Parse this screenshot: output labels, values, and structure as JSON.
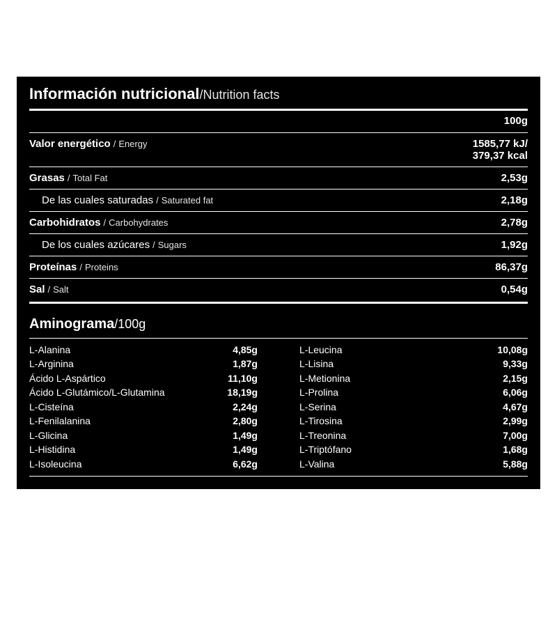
{
  "colors": {
    "bg": "#000000",
    "fg": "#ffffff"
  },
  "title": {
    "main": "Información nutricional",
    "sep": "/",
    "sub": "Nutrition facts"
  },
  "serving": "100g",
  "nutrition": [
    {
      "id": "energy",
      "bold": "Valor energético",
      "sep": " / ",
      "ital": "Energy",
      "value": "1585,77 kJ/\n379,37 kcal",
      "indent": false,
      "border": true
    },
    {
      "id": "fat",
      "bold": "Grasas",
      "sep": " / ",
      "ital": "Total Fat",
      "value": "2,53g",
      "indent": false,
      "border": true
    },
    {
      "id": "satfat",
      "bold": "",
      "sep": "",
      "norm": "De las cuales saturadas",
      "sep2": " / ",
      "ital": "Saturated fat",
      "value": "2,18g",
      "indent": true,
      "border": true
    },
    {
      "id": "carbs",
      "bold": "Carbohidratos",
      "sep": " / ",
      "ital": "Carbohydrates",
      "value": "2,78g",
      "indent": false,
      "border": true
    },
    {
      "id": "sugars",
      "bold": "",
      "sep": "",
      "norm": "De los cuales azúcares",
      "sep2": " / ",
      "ital": "Sugars",
      "value": "1,92g",
      "indent": true,
      "border": true
    },
    {
      "id": "protein",
      "bold": "Proteínas",
      "sep": " / ",
      "ital": "Proteins",
      "value": "86,37g",
      "indent": false,
      "border": true
    },
    {
      "id": "salt",
      "bold": "Sal",
      "sep": " / ",
      "ital": "Salt",
      "value": "0,54g",
      "indent": false,
      "border": false
    }
  ],
  "amino_title": {
    "main": "Aminograma",
    "sep": "/",
    "sub": "100g"
  },
  "amino_left": [
    {
      "name": "L-Alanina",
      "value": "4,85g"
    },
    {
      "name": "L-Arginina",
      "value": "1,87g"
    },
    {
      "name": "Ácido L-Aspártico",
      "value": "11,10g"
    },
    {
      "name": "Ácido L-Glutámico/L-Glutamina",
      "value": "18,19g"
    },
    {
      "name": "L-Cisteína",
      "value": "2,24g"
    },
    {
      "name": "L-Fenilalanina",
      "value": "2,80g"
    },
    {
      "name": "L-Glicina",
      "value": "1,49g"
    },
    {
      "name": "L-Histidina",
      "value": "1,49g"
    },
    {
      "name": "L-Isoleucina",
      "value": "6,62g"
    }
  ],
  "amino_right": [
    {
      "name": "L-Leucina",
      "value": "10,08g"
    },
    {
      "name": "L-Lisina",
      "value": "9,33g"
    },
    {
      "name": "L-Metionina",
      "value": "2,15g"
    },
    {
      "name": "L-Prolina",
      "value": "6,06g"
    },
    {
      "name": "L-Serina",
      "value": "4,67g"
    },
    {
      "name": "L-Tirosina",
      "value": "2,99g"
    },
    {
      "name": "L-Treonina",
      "value": "7,00g"
    },
    {
      "name": "L-Triptófano",
      "value": "1,68g"
    },
    {
      "name": "L-Valina",
      "value": "5,88g"
    }
  ]
}
